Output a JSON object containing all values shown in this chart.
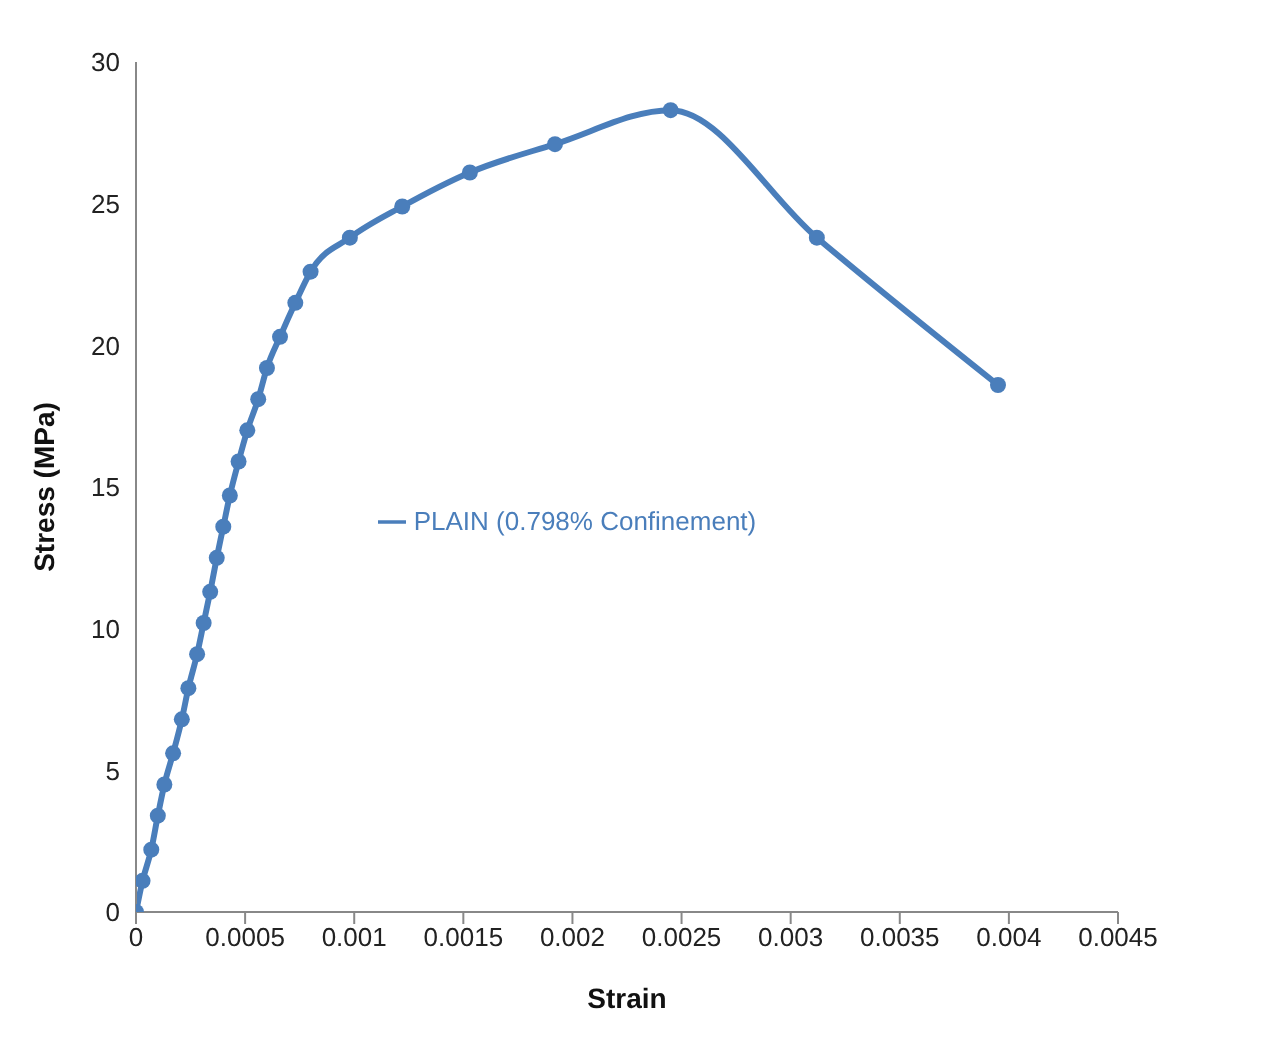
{
  "chart_data": {
    "type": "line",
    "xlabel": "Strain",
    "ylabel": "Stress (MPa)",
    "xlim": [
      0,
      0.0045
    ],
    "xticks": [
      0,
      0.0005,
      0.001,
      0.0015,
      0.002,
      0.0025,
      0.003,
      0.0035,
      0.004,
      0.0045
    ],
    "ylim": [
      0,
      30
    ],
    "yticks": [
      0,
      5,
      10,
      15,
      20,
      25,
      30
    ],
    "grid": false,
    "legend": "center",
    "marker": "circle",
    "line_style": "solid",
    "series": [
      {
        "name": "PLAIN (0.798% Confinement)",
        "color": "#4a7ebb",
        "x": [
          0,
          3e-05,
          7e-05,
          0.0001,
          0.00013,
          0.00017,
          0.00021,
          0.00024,
          0.00028,
          0.00031,
          0.00034,
          0.00037,
          0.0004,
          0.00043,
          0.00047,
          0.00051,
          0.00056,
          0.0006,
          0.00066,
          0.00073,
          0.0008,
          0.00098,
          0.00122,
          0.00153,
          0.00192,
          0.00245,
          0.00312,
          0.00395
        ],
        "values": [
          0,
          1.1,
          2.2,
          3.4,
          4.5,
          5.6,
          6.8,
          7.9,
          9.1,
          10.2,
          11.3,
          12.5,
          13.6,
          14.7,
          15.9,
          17.0,
          18.1,
          19.2,
          20.3,
          21.5,
          22.6,
          23.8,
          24.9,
          26.1,
          27.1,
          28.3,
          23.8,
          18.6
        ]
      }
    ]
  }
}
